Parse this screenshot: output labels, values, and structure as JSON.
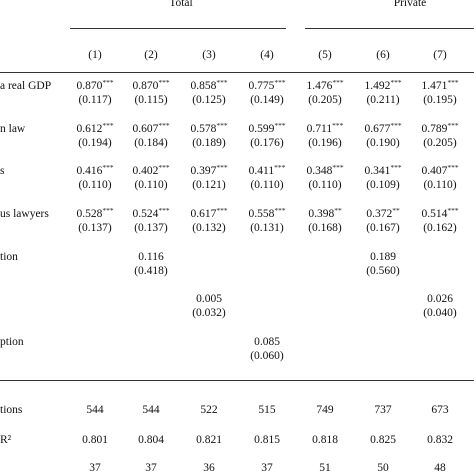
{
  "table": {
    "groups": [
      {
        "label": "Total",
        "span": [
          0,
          3
        ]
      },
      {
        "label": "Private",
        "span": [
          4,
          6
        ]
      }
    ],
    "columns": [
      "(1)",
      "(2)",
      "(3)",
      "(4)",
      "(5)",
      "(6)",
      "(7)"
    ],
    "coef_rows": [
      {
        "label": "a real GDP",
        "cells": [
          {
            "coef": "0.870",
            "stars": "***",
            "se": "(0.117)"
          },
          {
            "coef": "0.870",
            "stars": "***",
            "se": "(0.115)"
          },
          {
            "coef": "0.858",
            "stars": "***",
            "se": "(0.125)"
          },
          {
            "coef": "0.775",
            "stars": "***",
            "se": "(0.149)"
          },
          {
            "coef": "1.476",
            "stars": "***",
            "se": "(0.205)"
          },
          {
            "coef": "1.492",
            "stars": "***",
            "se": "(0.211)"
          },
          {
            "coef": "1.471",
            "stars": "***",
            "se": "(0.195)"
          }
        ]
      },
      {
        "label": "n law",
        "cells": [
          {
            "coef": "0.612",
            "stars": "***",
            "se": "(0.194)"
          },
          {
            "coef": "0.607",
            "stars": "***",
            "se": "(0.184)"
          },
          {
            "coef": "0.578",
            "stars": "***",
            "se": "(0.189)"
          },
          {
            "coef": "0.599",
            "stars": "***",
            "se": "(0.176)"
          },
          {
            "coef": "0.711",
            "stars": "***",
            "se": "(0.196)"
          },
          {
            "coef": "0.677",
            "stars": "***",
            "se": "(0.190)"
          },
          {
            "coef": "0.789",
            "stars": "***",
            "se": "(0.205)"
          }
        ]
      },
      {
        "label": "s",
        "cells": [
          {
            "coef": "0.416",
            "stars": "***",
            "se": "(0.110)"
          },
          {
            "coef": "0.402",
            "stars": "***",
            "se": "(0.110)"
          },
          {
            "coef": "0.397",
            "stars": "***",
            "se": "(0.121)"
          },
          {
            "coef": "0.411",
            "stars": "***",
            "se": "(0.110)"
          },
          {
            "coef": "0.348",
            "stars": "***",
            "se": "(0.110)"
          },
          {
            "coef": "0.341",
            "stars": "***",
            "se": "(0.109)"
          },
          {
            "coef": "0.407",
            "stars": "***",
            "se": "(0.110)"
          }
        ]
      },
      {
        "label": "us lawyers",
        "cells": [
          {
            "coef": "0.528",
            "stars": "***",
            "se": "(0.137)"
          },
          {
            "coef": "0.524",
            "stars": "***",
            "se": "(0.137)"
          },
          {
            "coef": "0.617",
            "stars": "***",
            "se": "(0.132)"
          },
          {
            "coef": "0.558",
            "stars": "***",
            "se": "(0.131)"
          },
          {
            "coef": "0.398",
            "stars": "**",
            "se": "(0.168)"
          },
          {
            "coef": "0.372",
            "stars": "**",
            "se": "(0.167)"
          },
          {
            "coef": "0.514",
            "stars": "***",
            "se": "(0.162)"
          }
        ]
      },
      {
        "label": "tion",
        "cells": [
          null,
          {
            "coef": "0.116",
            "se": "(0.418)"
          },
          null,
          null,
          null,
          {
            "coef": "0.189",
            "se": "(0.560)"
          },
          null
        ]
      },
      {
        "label": null,
        "cells": [
          null,
          null,
          {
            "coef": "0.005",
            "se": "(0.032)"
          },
          null,
          null,
          null,
          {
            "coef": "0.026",
            "se": "(0.040)"
          }
        ]
      },
      {
        "label": "ption",
        "cells": [
          null,
          null,
          null,
          {
            "coef": "0.085",
            "se": "(0.060)"
          },
          null,
          null,
          null
        ]
      }
    ],
    "stat_rows": [
      {
        "label": "tions",
        "cells": [
          "544",
          "544",
          "522",
          "515",
          "749",
          "737",
          "673"
        ]
      },
      {
        "label": "R²",
        "cells": [
          "0.801",
          "0.804",
          "0.821",
          "0.815",
          "0.818",
          "0.825",
          "0.832"
        ]
      },
      {
        "label": null,
        "cells": [
          "37",
          "37",
          "36",
          "37",
          "51",
          "50",
          "48"
        ]
      }
    ]
  }
}
